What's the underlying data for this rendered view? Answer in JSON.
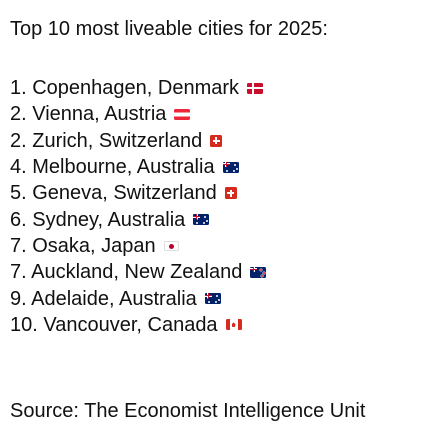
{
  "title": "Top 10 most liveable cities for 2025:",
  "cities": [
    {
      "label": "1. Copenhagen, Denmark",
      "flag": "flag-denmark-icon"
    },
    {
      "label": "2. Vienna, Austria",
      "flag": "flag-austria-icon"
    },
    {
      "label": "2. Zurich, Switzerland",
      "flag": "flag-switzerland-icon"
    },
    {
      "label": "4. Melbourne, Australia",
      "flag": "flag-australia-icon"
    },
    {
      "label": "5. Geneva, Switzerland",
      "flag": "flag-switzerland-icon"
    },
    {
      "label": "6. Sydney, Australia",
      "flag": "flag-australia-icon"
    },
    {
      "label": "7. Osaka, Japan",
      "flag": "flag-japan-icon"
    },
    {
      "label": "7. Auckland, New Zealand",
      "flag": "flag-new-zealand-icon"
    },
    {
      "label": "9. Adelaide, Australia",
      "flag": "flag-australia-icon"
    },
    {
      "label": "10. Vancouver, Canada",
      "flag": "flag-canada-icon"
    }
  ],
  "source": "Source: The Economist Intelligence Unit"
}
